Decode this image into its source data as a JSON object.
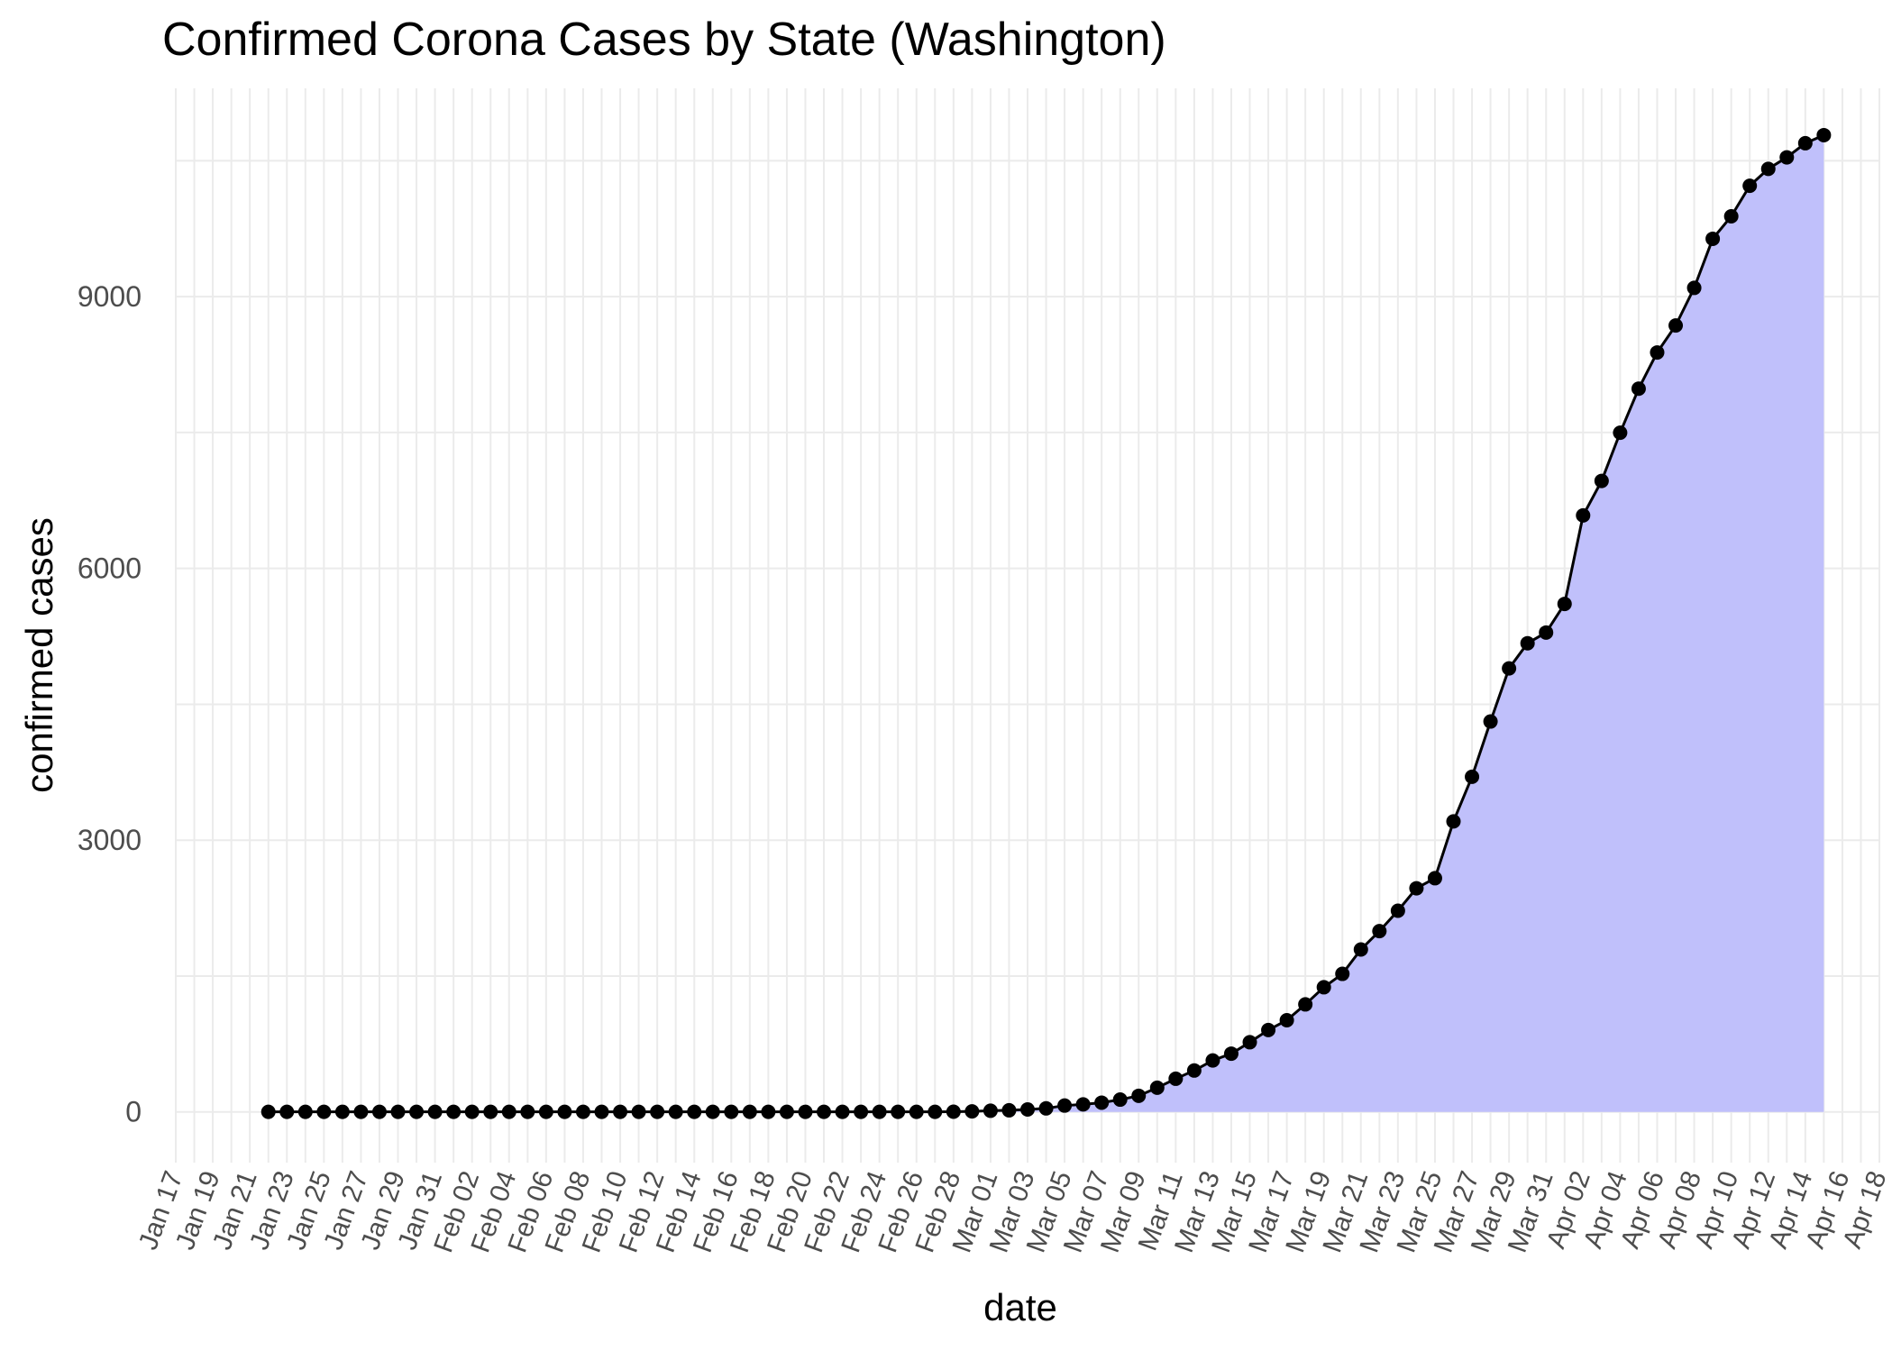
{
  "chart_data": {
    "type": "area",
    "title": "Confirmed Corona Cases by State (Washington)",
    "xlabel": "date",
    "ylabel": "confirmed cases",
    "x_ticks": [
      "Jan 17",
      "Jan 19",
      "Jan 21",
      "Jan 23",
      "Jan 25",
      "Jan 27",
      "Jan 29",
      "Jan 31",
      "Feb 02",
      "Feb 04",
      "Feb 06",
      "Feb 08",
      "Feb 10",
      "Feb 12",
      "Feb 14",
      "Feb 16",
      "Feb 18",
      "Feb 20",
      "Feb 22",
      "Feb 24",
      "Feb 26",
      "Feb 28",
      "Mar 01",
      "Mar 03",
      "Mar 05",
      "Mar 07",
      "Mar 09",
      "Mar 11",
      "Mar 13",
      "Mar 15",
      "Mar 17",
      "Mar 19",
      "Mar 21",
      "Mar 23",
      "Mar 25",
      "Mar 27",
      "Mar 29",
      "Mar 31",
      "Apr 02",
      "Apr 04",
      "Apr 06",
      "Apr 08",
      "Apr 10",
      "Apr 12",
      "Apr 14",
      "Apr 16",
      "Apr 18"
    ],
    "y_ticks": [
      0,
      3000,
      6000,
      9000
    ],
    "xlim": [
      "2020-01-17",
      "2020-04-18"
    ],
    "ylim": [
      -560,
      11300
    ],
    "grid": true,
    "fill_color": "#c0c0fb",
    "line_color": "#000000",
    "x": [
      "2020-01-22",
      "2020-01-23",
      "2020-01-24",
      "2020-01-25",
      "2020-01-26",
      "2020-01-27",
      "2020-01-28",
      "2020-01-29",
      "2020-01-30",
      "2020-01-31",
      "2020-02-01",
      "2020-02-02",
      "2020-02-03",
      "2020-02-04",
      "2020-02-05",
      "2020-02-06",
      "2020-02-07",
      "2020-02-08",
      "2020-02-09",
      "2020-02-10",
      "2020-02-11",
      "2020-02-12",
      "2020-02-13",
      "2020-02-14",
      "2020-02-15",
      "2020-02-16",
      "2020-02-17",
      "2020-02-18",
      "2020-02-19",
      "2020-02-20",
      "2020-02-21",
      "2020-02-22",
      "2020-02-23",
      "2020-02-24",
      "2020-02-25",
      "2020-02-26",
      "2020-02-27",
      "2020-02-28",
      "2020-02-29",
      "2020-03-01",
      "2020-03-02",
      "2020-03-03",
      "2020-03-04",
      "2020-03-05",
      "2020-03-06",
      "2020-03-07",
      "2020-03-08",
      "2020-03-09",
      "2020-03-10",
      "2020-03-11",
      "2020-03-12",
      "2020-03-13",
      "2020-03-14",
      "2020-03-15",
      "2020-03-16",
      "2020-03-17",
      "2020-03-18",
      "2020-03-19",
      "2020-03-20",
      "2020-03-21",
      "2020-03-22",
      "2020-03-23",
      "2020-03-24",
      "2020-03-25",
      "2020-03-26",
      "2020-03-27",
      "2020-03-28",
      "2020-03-29",
      "2020-03-30",
      "2020-03-31",
      "2020-04-01",
      "2020-04-02",
      "2020-04-03",
      "2020-04-04",
      "2020-04-05",
      "2020-04-06",
      "2020-04-07",
      "2020-04-08",
      "2020-04-09",
      "2020-04-10",
      "2020-04-11",
      "2020-04-12",
      "2020-04-13",
      "2020-04-14",
      "2020-04-15"
    ],
    "values": [
      1,
      1,
      1,
      1,
      1,
      1,
      1,
      1,
      1,
      1,
      1,
      1,
      1,
      1,
      1,
      1,
      1,
      1,
      1,
      1,
      1,
      1,
      1,
      1,
      1,
      1,
      1,
      1,
      1,
      1,
      1,
      1,
      1,
      1,
      1,
      1,
      1,
      2,
      6,
      13,
      18,
      27,
      39,
      70,
      83,
      102,
      136,
      178,
      267,
      366,
      457,
      568,
      643,
      769,
      904,
      1012,
      1187,
      1376,
      1524,
      1793,
      1996,
      2221,
      2469,
      2580,
      3207,
      3700,
      4310,
      4896,
      5174,
      5292,
      5608,
      6585,
      6966,
      7498,
      7984,
      8384,
      8682,
      9097,
      9639,
      9887,
      10224,
      10411,
      10538,
      10694,
      10783
    ]
  }
}
